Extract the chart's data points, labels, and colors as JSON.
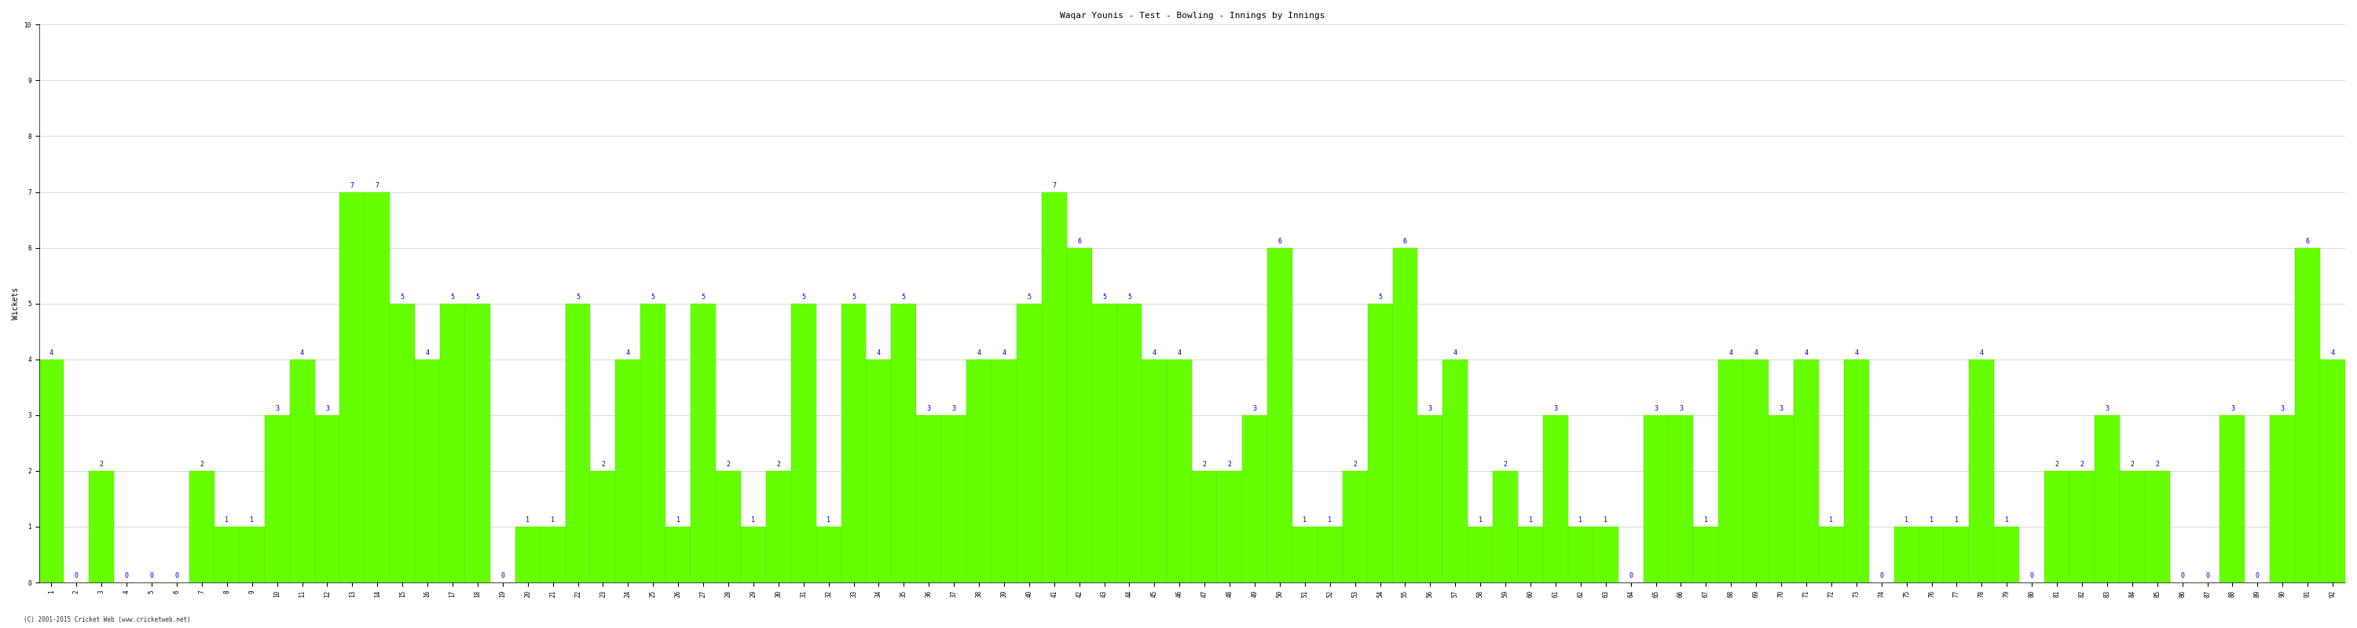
{
  "title": "Waqar Younis - Test - Bowling - Innings by Innings",
  "ylabel": "Wickets",
  "bar_color": "#66ff00",
  "bar_edge_color": "#55dd00",
  "text_color": "#0000cc",
  "bg_color": "#ffffff",
  "grid_color": "#cccccc",
  "copyright": "(C) 2001-2015 Cricket Web (www.cricketweb.net)",
  "innings": [
    1,
    2,
    3,
    4,
    5,
    6,
    7,
    8,
    9,
    10,
    11,
    12,
    13,
    14,
    15,
    16,
    17,
    18,
    19,
    20,
    21,
    22,
    23,
    24,
    25,
    26,
    27,
    28,
    29,
    30,
    31,
    32,
    33,
    34,
    35,
    36,
    37,
    38,
    39,
    40,
    41,
    42,
    43,
    44,
    45,
    46,
    47,
    48,
    49,
    50,
    51,
    52,
    53,
    54,
    55,
    56,
    57,
    58,
    59,
    60,
    61,
    62,
    63,
    64,
    65,
    66,
    67,
    68,
    69,
    70,
    71,
    72,
    73,
    74,
    75,
    76,
    77,
    78,
    79,
    80,
    81,
    82,
    83,
    84,
    85,
    86,
    87,
    88,
    89,
    90,
    91,
    92
  ],
  "wickets": [
    4,
    0,
    2,
    0,
    0,
    0,
    2,
    1,
    1,
    3,
    4,
    3,
    7,
    7,
    5,
    4,
    5,
    5,
    0,
    1,
    1,
    5,
    2,
    4,
    5,
    1,
    5,
    2,
    1,
    2,
    5,
    1,
    5,
    4,
    5,
    3,
    3,
    4,
    4,
    5,
    7,
    6,
    5,
    5,
    4,
    4,
    2,
    2,
    3,
    6,
    1,
    1,
    2,
    5,
    6,
    3,
    4,
    1,
    2,
    1,
    3,
    1,
    1,
    0,
    3,
    3,
    1,
    4,
    4,
    3,
    4,
    1,
    4,
    0,
    1,
    1,
    1,
    4,
    1,
    0,
    2,
    2,
    3,
    2,
    2,
    0,
    0,
    3,
    0,
    3,
    6,
    4
  ],
  "ylim": [
    0,
    10
  ],
  "yticks": [
    0,
    1,
    2,
    3,
    4,
    5,
    6,
    7,
    8,
    9,
    10
  ],
  "title_fontsize": 8,
  "label_fontsize": 6,
  "tick_fontsize": 5.5,
  "ylabel_fontsize": 7
}
